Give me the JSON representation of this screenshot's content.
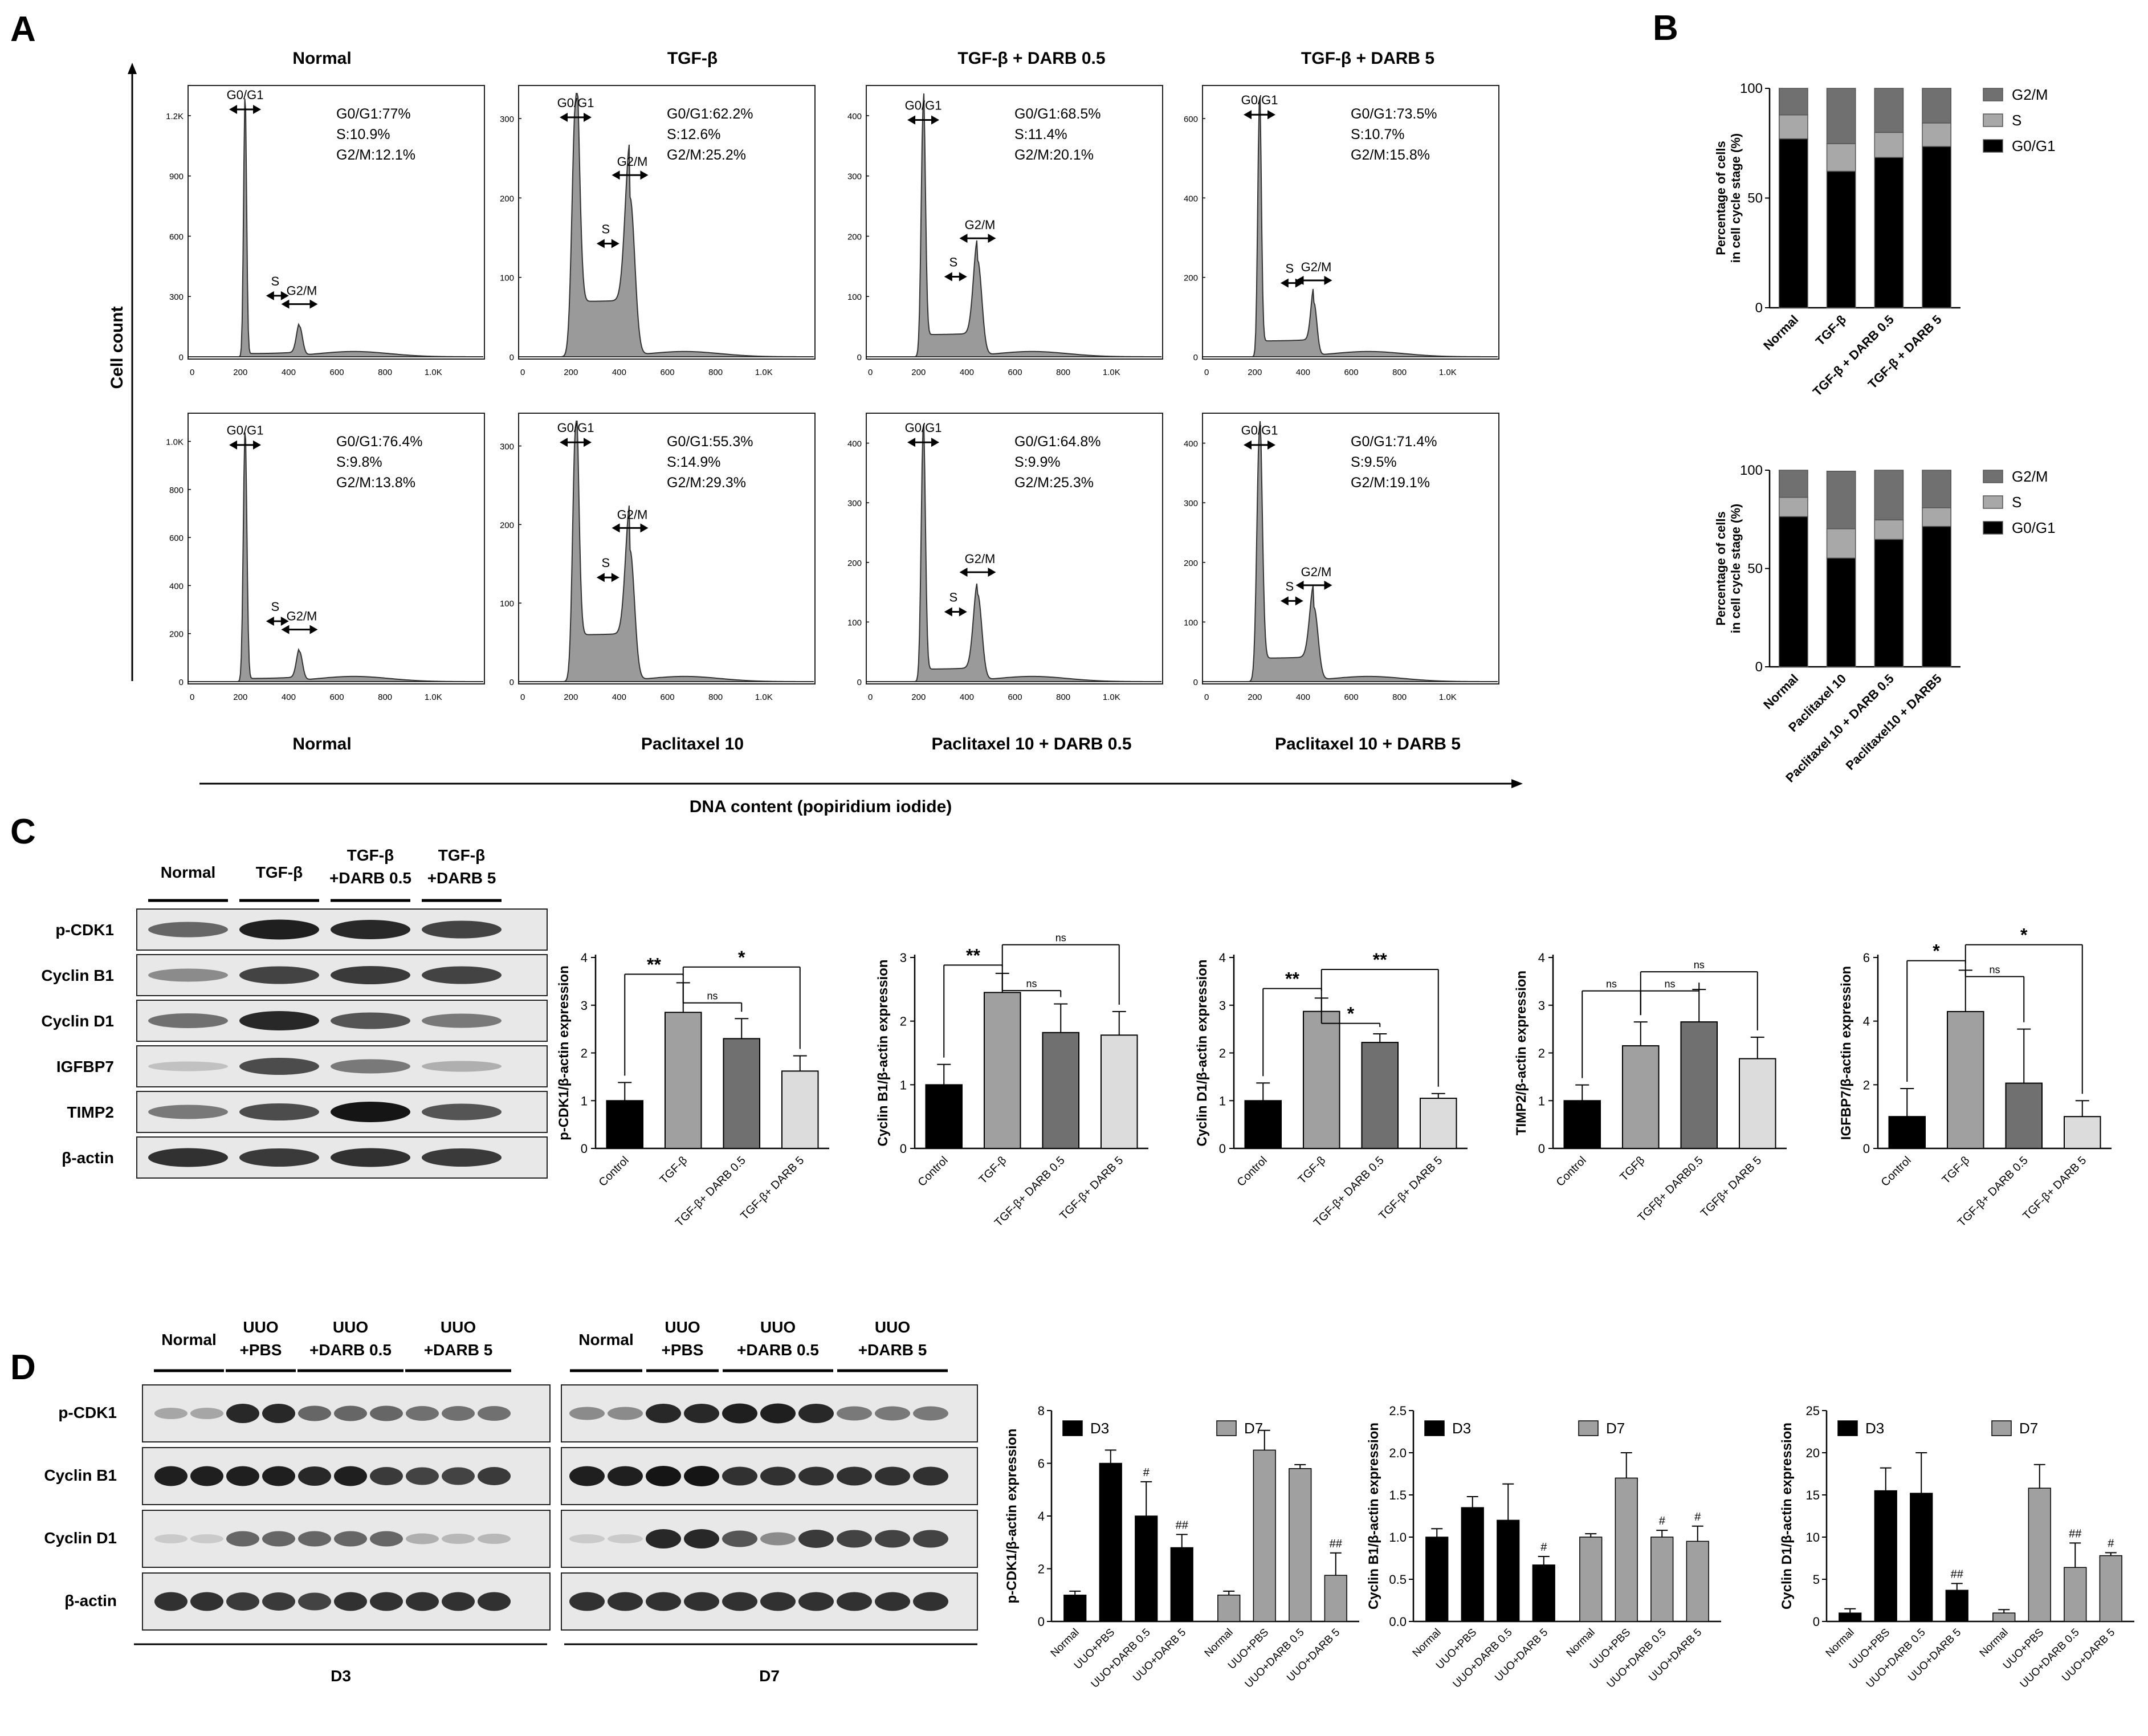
{
  "panel_letters": {
    "a": "A",
    "b": "B",
    "c": "C",
    "d": "D"
  },
  "panel_a": {
    "y_axis_label": "Cell count",
    "x_axis_label": "DNA content (popiridium iodide)",
    "row1_titles": [
      "Normal",
      "TGF-β",
      "TGF-β + DARB 0.5",
      "TGF-β + DARB 5"
    ],
    "row2_titles": [
      "Normal",
      "Paclitaxel 10",
      "Paclitaxel 10 + DARB 0.5",
      "Paclitaxel 10 + DARB 5"
    ],
    "x_tick_labels": [
      "0",
      "200",
      "400",
      "600",
      "800",
      "1.0K"
    ],
    "peak_labels": {
      "g0g1": "G0/G1",
      "s": "S",
      "g2m": "G2/M"
    },
    "histograms": [
      {
        "yticks": [
          "0",
          "300",
          "600",
          "900",
          "1.2K"
        ],
        "ymax": 1300,
        "stats": [
          "G0/G1:77%",
          "S:10.9%",
          "G2/M:12.1%"
        ]
      },
      {
        "yticks": [
          "0",
          "100",
          "200",
          "300"
        ],
        "ymax": 330,
        "stats": [
          "G0/G1:62.2%",
          "S:12.6%",
          "G2/M:25.2%"
        ]
      },
      {
        "yticks": [
          "0",
          "100",
          "200",
          "300",
          "400"
        ],
        "ymax": 430,
        "stats": [
          "G0/G1:68.5%",
          "S:11.4%",
          "G2/M:20.1%"
        ]
      },
      {
        "yticks": [
          "0",
          "200",
          "400",
          "600"
        ],
        "ymax": 680,
        "stats": [
          "G0/G1:73.5%",
          "S:10.7%",
          "G2/M:15.8%"
        ]
      },
      {
        "yticks": [
          "0",
          "200",
          "400",
          "600",
          "800",
          "1.0K"
        ],
        "ymax": 1100,
        "stats": [
          "G0/G1:76.4%",
          "S:9.8%",
          "G2/M:13.8%"
        ]
      },
      {
        "yticks": [
          "0",
          "100",
          "200",
          "300"
        ],
        "ymax": 360,
        "stats": [
          "G0/G1:55.3%",
          "S:14.9%",
          "G2/M:29.3%"
        ]
      },
      {
        "yticks": [
          "0",
          "100",
          "200",
          "300",
          "400"
        ],
        "ymax": 440,
        "stats": [
          "G0/G1:64.8%",
          "S:9.9%",
          "G2/M:25.3%"
        ]
      },
      {
        "yticks": [
          "0",
          "100",
          "200",
          "300",
          "400"
        ],
        "ymax": 460,
        "stats": [
          "G0/G1:71.4%",
          "S:9.5%",
          "G2/M:19.1%"
        ]
      }
    ]
  },
  "chart_data": [
    {
      "type": "bar",
      "stacked": true,
      "panel": "B-top",
      "ylabel": "Percentage of cells in cell cycle stage (%)",
      "categories": [
        "Normal",
        "TGF-β",
        "TGF-β + DARB 0.5",
        "TGF-β + DARB 5"
      ],
      "ylim": [
        0,
        100
      ],
      "yticks": [
        "0",
        "50",
        "100"
      ],
      "series": [
        {
          "name": "G0/G1",
          "color": "#000000",
          "values": [
            77,
            62.2,
            68.5,
            73.5
          ]
        },
        {
          "name": "S",
          "color": "#a8a8a8",
          "values": [
            10.9,
            12.6,
            11.4,
            10.7
          ]
        },
        {
          "name": "G2/M",
          "color": "#707070",
          "values": [
            12.1,
            25.2,
            20.1,
            15.8
          ]
        }
      ],
      "legend_order": [
        "G2/M",
        "S",
        "G0/G1"
      ]
    },
    {
      "type": "bar",
      "stacked": true,
      "panel": "B-bottom",
      "ylabel": "Percentage of cells in cell cycle stage (%)",
      "categories": [
        "Normal",
        "Paclitaxel 10",
        "Paclitaxel 10 + DARB 0.5",
        "Paclitaxel10 + DARB5"
      ],
      "ylim": [
        0,
        100
      ],
      "yticks": [
        "0",
        "50",
        "100"
      ],
      "series": [
        {
          "name": "G0/G1",
          "color": "#000000",
          "values": [
            76.4,
            55.3,
            64.8,
            71.4
          ]
        },
        {
          "name": "S",
          "color": "#a8a8a8",
          "values": [
            9.8,
            14.9,
            9.9,
            9.5
          ]
        },
        {
          "name": "G2/M",
          "color": "#707070",
          "values": [
            13.8,
            29.3,
            25.3,
            19.1
          ]
        }
      ],
      "legend_order": [
        "G2/M",
        "S",
        "G0/G1"
      ]
    },
    {
      "type": "bar",
      "panel": "C-1",
      "ylabel": "p-CDK1/β-actin expression",
      "categories": [
        "Control",
        "TGF-β",
        "TGF-β+ DARB 0.5",
        "TGF-β+ DARB 5"
      ],
      "values": [
        1.0,
        2.85,
        2.3,
        1.62
      ],
      "errors": [
        0.38,
        0.62,
        0.42,
        0.32
      ],
      "colors": [
        "#000000",
        "#a0a0a0",
        "#707070",
        "#dcdcdc"
      ],
      "ylim": [
        0,
        4
      ],
      "yticks": [
        "0",
        "1",
        "2",
        "3",
        "4"
      ],
      "brackets": [
        {
          "from": 0,
          "to": 1,
          "label": "**",
          "y": 3.65
        },
        {
          "from": 1,
          "to": 2,
          "label": "ns",
          "y": 3.05
        },
        {
          "from": 1,
          "to": 3,
          "label": "*",
          "y": 3.8
        }
      ]
    },
    {
      "type": "bar",
      "panel": "C-2",
      "ylabel": "Cyclin B1/β-actin expression",
      "categories": [
        "Control",
        "TGF-β",
        "TGF-β+ DARB 0.5",
        "TGF-β+ DARB 5"
      ],
      "values": [
        1.0,
        2.45,
        1.82,
        1.78
      ],
      "errors": [
        0.32,
        0.3,
        0.45,
        0.37
      ],
      "colors": [
        "#000000",
        "#a0a0a0",
        "#707070",
        "#dcdcdc"
      ],
      "ylim": [
        0,
        3
      ],
      "yticks": [
        "0",
        "1",
        "2",
        "3"
      ],
      "brackets": [
        {
          "from": 0,
          "to": 1,
          "label": "**",
          "y": 2.88
        },
        {
          "from": 1,
          "to": 2,
          "label": "ns",
          "y": 2.48
        },
        {
          "from": 1,
          "to": 3,
          "label": "ns",
          "y": 3.2
        }
      ]
    },
    {
      "type": "bar",
      "panel": "C-3",
      "ylabel": "Cyclin D1/β-actin expression",
      "categories": [
        "Control",
        "TGF-β",
        "TGF-β+ DARB 0.5",
        "TGF-β+ DARB 5"
      ],
      "values": [
        1.0,
        2.87,
        2.22,
        1.05
      ],
      "errors": [
        0.37,
        0.28,
        0.18,
        0.1
      ],
      "colors": [
        "#000000",
        "#a0a0a0",
        "#707070",
        "#dcdcdc"
      ],
      "ylim": [
        0,
        4
      ],
      "yticks": [
        "0",
        "1",
        "2",
        "3",
        "4"
      ],
      "brackets": [
        {
          "from": 0,
          "to": 1,
          "label": "**",
          "y": 3.35
        },
        {
          "from": 1,
          "to": 2,
          "label": "*",
          "y": 2.62
        },
        {
          "from": 1,
          "to": 3,
          "label": "**",
          "y": 3.75
        }
      ]
    },
    {
      "type": "bar",
      "panel": "C-4",
      "ylabel": "TIMP2/β-actin expression",
      "categories": [
        "Control",
        "TGFβ",
        "TGFβ+ DARB0.5",
        "TGFβ+ DARB 5"
      ],
      "values": [
        1.0,
        2.15,
        2.65,
        1.88
      ],
      "errors": [
        0.33,
        0.5,
        0.68,
        0.45
      ],
      "colors": [
        "#000000",
        "#a0a0a0",
        "#707070",
        "#dcdcdc"
      ],
      "ylim": [
        0,
        4
      ],
      "yticks": [
        "0",
        "1",
        "2",
        "3",
        "4"
      ],
      "brackets": [
        {
          "from": 0,
          "to": 1,
          "label": "ns",
          "y": 3.3
        },
        {
          "from": 1,
          "to": 2,
          "label": "ns",
          "y": 3.3
        },
        {
          "from": 1,
          "to": 3,
          "label": "ns",
          "y": 3.7
        }
      ]
    },
    {
      "type": "bar",
      "panel": "C-5",
      "ylabel": "IGFBP7/β-actin expression",
      "categories": [
        "Control",
        "TGF-β",
        "TGF-β+ DARB 0.5",
        "TGF-β+ DARB 5"
      ],
      "values": [
        1.0,
        4.3,
        2.05,
        1.0
      ],
      "errors": [
        0.88,
        1.3,
        1.7,
        0.5
      ],
      "colors": [
        "#000000",
        "#a0a0a0",
        "#707070",
        "#dcdcdc"
      ],
      "ylim": [
        0,
        6
      ],
      "yticks": [
        "0",
        "2",
        "4",
        "6"
      ],
      "brackets": [
        {
          "from": 0,
          "to": 1,
          "label": "*",
          "y": 5.9
        },
        {
          "from": 1,
          "to": 2,
          "label": "ns",
          "y": 5.4
        },
        {
          "from": 1,
          "to": 3,
          "label": "*",
          "y": 6.4
        }
      ]
    },
    {
      "type": "bar",
      "panel": "D-1",
      "ylabel": "p-CDK1/β-actin expression",
      "categories": [
        "Normal",
        "UUO+PBS",
        "UUO+DARB 0.5",
        "UUO+DARB 5"
      ],
      "ylim": [
        0,
        8
      ],
      "yticks": [
        "0",
        "2",
        "4",
        "6",
        "8"
      ],
      "series": [
        {
          "name": "D3",
          "color": "#000000",
          "values": [
            1.0,
            6.0,
            4.0,
            2.8
          ],
          "errors": [
            0.15,
            0.5,
            1.3,
            0.5
          ],
          "marks": [
            "",
            "",
            "#",
            "##"
          ]
        },
        {
          "name": "D7",
          "color": "#a0a0a0",
          "values": [
            1.0,
            6.5,
            5.8,
            1.75
          ],
          "errors": [
            0.15,
            0.75,
            0.15,
            0.85
          ],
          "marks": [
            "",
            "",
            "",
            "##"
          ]
        }
      ]
    },
    {
      "type": "bar",
      "panel": "D-2",
      "ylabel": "Cyclin B1/β-actin expression",
      "categories": [
        "Normal",
        "UUO+PBS",
        "UUO+DARB 0.5",
        "UUO+DARB 5"
      ],
      "ylim": [
        0,
        2.5
      ],
      "yticks": [
        "0.0",
        "0.5",
        "1.0",
        "1.5",
        "2.0",
        "2.5"
      ],
      "series": [
        {
          "name": "D3",
          "color": "#000000",
          "values": [
            1.0,
            1.35,
            1.2,
            0.67
          ],
          "errors": [
            0.1,
            0.13,
            0.43,
            0.1
          ],
          "marks": [
            "",
            "",
            "",
            "#"
          ]
        },
        {
          "name": "D7",
          "color": "#a0a0a0",
          "values": [
            1.0,
            1.7,
            1.0,
            0.95
          ],
          "errors": [
            0.04,
            0.3,
            0.08,
            0.18
          ],
          "marks": [
            "",
            "",
            "#",
            "#"
          ]
        }
      ]
    },
    {
      "type": "bar",
      "panel": "D-3",
      "ylabel": "Cyclin D1/β-actin expression",
      "categories": [
        "Normal",
        "UUO+PBS",
        "UUO+DARB 0.5",
        "UUO+DARB 5"
      ],
      "ylim": [
        0,
        25
      ],
      "yticks": [
        "0",
        "5",
        "10",
        "15",
        "20",
        "25"
      ],
      "series": [
        {
          "name": "D3",
          "color": "#000000",
          "values": [
            1.0,
            15.5,
            15.2,
            3.7
          ],
          "errors": [
            0.5,
            2.7,
            4.8,
            0.8
          ],
          "marks": [
            "",
            "",
            "",
            "##"
          ]
        },
        {
          "name": "D7",
          "color": "#a0a0a0",
          "values": [
            1.0,
            15.8,
            6.4,
            7.8
          ],
          "errors": [
            0.4,
            2.8,
            2.9,
            0.35
          ],
          "marks": [
            "",
            "",
            "##",
            "#"
          ]
        }
      ]
    }
  ],
  "panel_c_blot": {
    "lanes": [
      "Normal",
      "TGF-β",
      "TGF-β\n+DARB 0.5",
      "TGF-β\n+DARB 5"
    ],
    "rows": [
      {
        "label": "p-CDK1",
        "bands": [
          0.55,
          0.95,
          0.9,
          0.75
        ]
      },
      {
        "label": "Cyclin B1",
        "bands": [
          0.35,
          0.75,
          0.8,
          0.75
        ]
      },
      {
        "label": "Cyclin D1",
        "bands": [
          0.5,
          0.9,
          0.65,
          0.45
        ]
      },
      {
        "label": "IGFBP7",
        "bands": [
          0.05,
          0.7,
          0.45,
          0.15
        ]
      },
      {
        "label": "TIMP2",
        "bands": [
          0.45,
          0.7,
          1.0,
          0.65
        ]
      },
      {
        "label": "β-actin",
        "bands": [
          0.85,
          0.8,
          0.85,
          0.8
        ]
      }
    ]
  },
  "panel_d_blot": {
    "groups": [
      "Normal",
      "UUO\n+PBS",
      "UUO\n+DARB 0.5",
      "UUO\n+DARB 5"
    ],
    "timepoints": [
      "D3",
      "D7"
    ],
    "row_labels": [
      "p-CDK1",
      "Cyclin B1",
      "Cyclin D1",
      "β-actin"
    ],
    "d3_bands": [
      [
        0.2,
        0.2,
        0.9,
        0.9,
        0.55,
        0.55,
        0.55,
        0.5,
        0.5,
        0.5
      ],
      [
        0.95,
        0.95,
        0.95,
        0.95,
        0.9,
        0.95,
        0.8,
        0.75,
        0.75,
        0.8
      ],
      [
        0.0,
        0.0,
        0.55,
        0.55,
        0.55,
        0.55,
        0.55,
        0.15,
        0.1,
        0.1
      ],
      [
        0.85,
        0.85,
        0.8,
        0.8,
        0.75,
        0.85,
        0.85,
        0.85,
        0.85,
        0.85
      ]
    ],
    "d7_bands": [
      [
        0.35,
        0.35,
        0.9,
        0.9,
        0.95,
        0.95,
        0.9,
        0.45,
        0.45,
        0.45
      ],
      [
        0.95,
        0.95,
        1.0,
        1.0,
        0.85,
        0.85,
        0.85,
        0.85,
        0.85,
        0.85
      ],
      [
        0.0,
        0.0,
        0.9,
        0.9,
        0.65,
        0.35,
        0.8,
        0.75,
        0.75,
        0.75
      ],
      [
        0.85,
        0.85,
        0.85,
        0.85,
        0.85,
        0.85,
        0.85,
        0.85,
        0.85,
        0.85
      ]
    ]
  }
}
